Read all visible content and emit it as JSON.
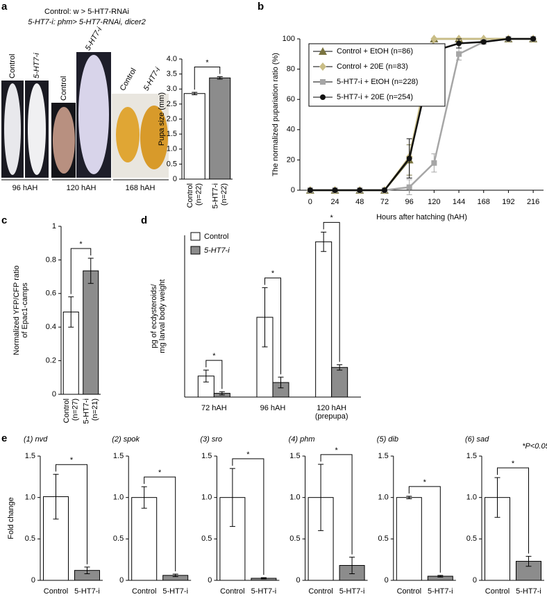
{
  "panel_labels": [
    "a",
    "b",
    "c",
    "d",
    "e"
  ],
  "panel_a": {
    "genotype_lines": [
      "Control: w > 5-HT7-RNAi",
      "5-HT7-i: phm> 5-HT7-RNAi, dicer2"
    ],
    "photo_labels": [
      "Control",
      "5-HT7-i",
      "Control",
      "5-HT7-i",
      "Control",
      "5-HT7-i"
    ],
    "stages": [
      "96 hAH",
      "120 hAH",
      "168 hAH"
    ]
  },
  "chart_data": [
    {
      "type": "bar",
      "y_label": "Pupa size (mm)",
      "categories": [
        "Control\n(n=22)",
        "5-HT7-i\n(n=22)"
      ],
      "values": [
        2.85,
        3.37
      ],
      "errors": [
        0.04,
        0.04
      ],
      "colors": [
        "#ffffff",
        "#8c8c8c"
      ],
      "ylim": [
        0,
        4
      ],
      "yticks": [
        0,
        0.5,
        {
          "value": 1,
          "label": "1.0"
        },
        1.5,
        {
          "value": 2,
          "label": "2.0"
        },
        2.5,
        {
          "value": 3,
          "label": "3.0"
        },
        3.5,
        {
          "value": 4,
          "label": "4.0"
        }
      ],
      "significance": "*"
    },
    {
      "type": "line",
      "y_label": "The normalized pupariation ratio (%)",
      "x_label": "Hours after hatching (hAH)",
      "x": [
        0,
        24,
        48,
        72,
        96,
        120,
        144,
        168,
        192,
        216
      ],
      "xlim": [
        -10,
        226
      ],
      "xticks": [
        0,
        24,
        48,
        72,
        96,
        120,
        144,
        168,
        192,
        216
      ],
      "ylim": [
        0,
        100
      ],
      "yticks": [
        0,
        20,
        40,
        60,
        80,
        100
      ],
      "legend": "upper left",
      "series": [
        {
          "name": "Control + EtOH (n=86)",
          "color": "#7a7440",
          "marker": "triangle",
          "values": [
            0,
            0,
            0,
            0,
            20,
            100,
            100,
            100,
            100,
            100
          ],
          "errors": [
            null,
            null,
            null,
            null,
            10,
            null,
            null,
            null,
            null,
            null
          ]
        },
        {
          "name": "Control + 20E (n=83)",
          "color": "#c9bd86",
          "marker": "diamond",
          "values": [
            0,
            0,
            0,
            0,
            22,
            100,
            100,
            100,
            100,
            100
          ],
          "errors": [
            null,
            null,
            null,
            null,
            null,
            null,
            null,
            null,
            null,
            null
          ]
        },
        {
          "name": "5-HT7-i + EtOH (n=228)",
          "color": "#a6a6a6",
          "marker": "square",
          "values": [
            0,
            0,
            0,
            0,
            2,
            18,
            90,
            98,
            100,
            100
          ],
          "errors": [
            null,
            null,
            null,
            null,
            5,
            6,
            4,
            null,
            null,
            null
          ]
        },
        {
          "name": "5-HT7-i + 20E (n=254)",
          "color": "#111111",
          "marker": "circle",
          "values": [
            0,
            0,
            0,
            0,
            21,
            92,
            97,
            98,
            100,
            100
          ],
          "errors": [
            null,
            null,
            null,
            null,
            13,
            4,
            3,
            null,
            null,
            null
          ]
        }
      ]
    },
    {
      "type": "bar",
      "y_label": "Normalized YFP/CFP ratio\nof Epac1-camps",
      "categories": [
        "Control\n(n=27)",
        "5-HT7-i\n(n=21)"
      ],
      "values": [
        0.49,
        0.735
      ],
      "errors": [
        0.09,
        0.075
      ],
      "colors": [
        "#ffffff",
        "#8c8c8c"
      ],
      "ylim": [
        0,
        1
      ],
      "yticks": [
        0,
        0.2,
        0.4,
        0.6,
        0.8,
        1
      ],
      "significance": "*"
    },
    {
      "type": "bar",
      "y_label": "pg of ecdysteroids/\nmg larval body weight",
      "categories": [
        "72 hAH",
        "96 hAH",
        "120 hAH\n(prepupa)"
      ],
      "series": [
        {
          "name": "Control",
          "color": "#ffffff",
          "values": [
            3.9,
            14.8,
            28.8
          ],
          "errors": [
            1.1,
            5.5,
            1.8
          ]
        },
        {
          "name": "5-HT7-i",
          "color": "#8c8c8c",
          "values": [
            0.7,
            2.7,
            5.5
          ],
          "errors": [
            0.3,
            1,
            0.5
          ]
        }
      ],
      "ylim": [
        0,
        30
      ],
      "legend": "upper left",
      "significance": [
        "*",
        "*",
        "*"
      ]
    },
    {
      "type": "bar",
      "title": "(1) nvd",
      "y_label": "Fold change",
      "categories": [
        "Control",
        "5-HT7-i"
      ],
      "values": [
        1.01,
        0.12
      ],
      "errors": [
        0.27,
        0.04
      ],
      "colors": [
        "#ffffff",
        "#8c8c8c"
      ],
      "ylim": [
        0,
        1.5
      ],
      "yticks": [
        0,
        0.5,
        {
          "value": 1,
          "label": "1.0"
        },
        1.5
      ],
      "significance": "*"
    },
    {
      "type": "bar",
      "title": "(2) spok",
      "categories": [
        "Control",
        "5-HT7-i"
      ],
      "values": [
        1.0,
        0.06
      ],
      "errors": [
        0.13,
        0.015
      ],
      "colors": [
        "#ffffff",
        "#8c8c8c"
      ],
      "ylim": [
        0,
        1.5
      ],
      "yticks": [
        0,
        0.5,
        {
          "value": 1,
          "label": "1.0"
        },
        1.5
      ],
      "significance": "*"
    },
    {
      "type": "bar",
      "title": "(3) sro",
      "categories": [
        "Control",
        "5-HT7-i"
      ],
      "values": [
        1.0,
        0.025
      ],
      "errors": [
        0.35,
        0.007
      ],
      "colors": [
        "#ffffff",
        "#8c8c8c"
      ],
      "ylim": [
        0,
        1.5
      ],
      "yticks": [
        0,
        0.5,
        {
          "value": 1,
          "label": "1.0"
        },
        1.5
      ],
      "significance": "*"
    },
    {
      "type": "bar",
      "title": "(4) phm",
      "categories": [
        "Control",
        "5-HT7-i"
      ],
      "values": [
        1.0,
        0.18
      ],
      "errors": [
        0.4,
        0.1
      ],
      "colors": [
        "#ffffff",
        "#8c8c8c"
      ],
      "ylim": [
        0,
        1.5
      ],
      "yticks": [
        0,
        0.5,
        {
          "value": 1,
          "label": "1.0"
        },
        1.5
      ],
      "significance": "*"
    },
    {
      "type": "bar",
      "title": "(5) dib",
      "categories": [
        "Control",
        "5-HT7-i"
      ],
      "values": [
        1.0,
        0.05
      ],
      "errors": [
        0.015,
        0.01
      ],
      "colors": [
        "#ffffff",
        "#8c8c8c"
      ],
      "ylim": [
        0,
        1.5
      ],
      "yticks": [
        0,
        0.5,
        {
          "value": 1,
          "label": "1.0"
        },
        1.5
      ],
      "significance": "*"
    },
    {
      "type": "bar",
      "title": "(6) sad",
      "categories": [
        "Control",
        "5-HT7-i"
      ],
      "values": [
        1.0,
        0.23
      ],
      "errors": [
        0.24,
        0.06
      ],
      "colors": [
        "#ffffff",
        "#8c8c8c"
      ],
      "ylim": [
        0,
        1.5
      ],
      "yticks": [
        0,
        0.5,
        {
          "value": 1,
          "label": "1.0"
        },
        1.5
      ],
      "significance": "*",
      "note": "*P<0.05"
    }
  ]
}
